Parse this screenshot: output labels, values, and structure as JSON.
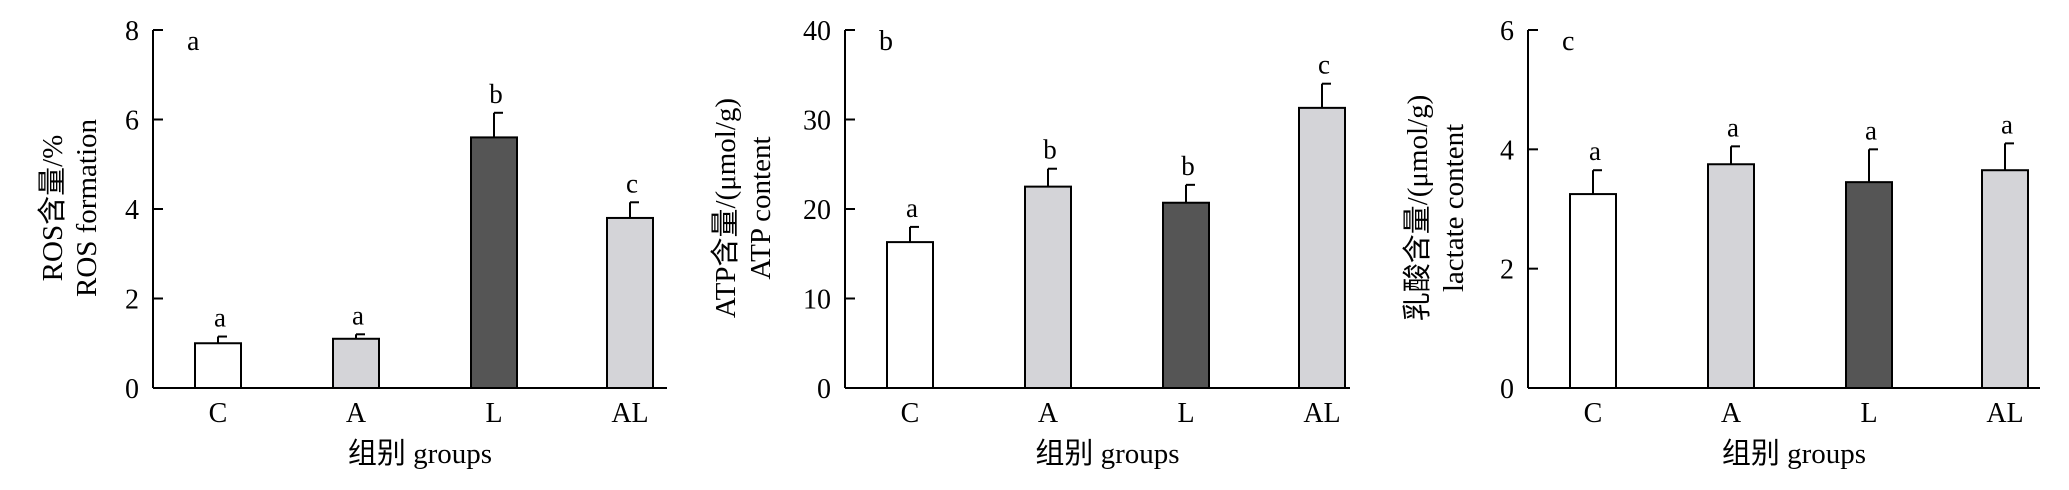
{
  "chart_data": [
    {
      "type": "bar",
      "panel": "a",
      "categories": [
        "C",
        "A",
        "L",
        "AL"
      ],
      "values": [
        1.0,
        1.1,
        5.6,
        3.8
      ],
      "errors": [
        0.15,
        0.1,
        0.55,
        0.35
      ],
      "significance": [
        "a",
        "a",
        "b",
        "c"
      ],
      "bar_colors": [
        "#ffffff",
        "#d4d4d8",
        "#555555",
        "#d4d4d8"
      ],
      "ylabel_lines": [
        "ROS含量/%",
        "ROS formation"
      ],
      "xlabel": "组别 groups",
      "ylim": [
        0,
        8
      ],
      "yticks": [
        0,
        2,
        4,
        6,
        8
      ],
      "legend": "none",
      "grid": false
    },
    {
      "type": "bar",
      "panel": "b",
      "categories": [
        "C",
        "A",
        "L",
        "AL"
      ],
      "values": [
        16.3,
        22.5,
        20.7,
        31.3
      ],
      "errors": [
        1.7,
        2.0,
        2.0,
        2.7
      ],
      "significance": [
        "a",
        "b",
        "b",
        "c"
      ],
      "bar_colors": [
        "#ffffff",
        "#d4d4d8",
        "#555555",
        "#d4d4d8"
      ],
      "ylabel_lines": [
        "ATP含量/(μmol/g)",
        "ATP content"
      ],
      "xlabel": "组别 groups",
      "ylim": [
        0,
        40
      ],
      "yticks": [
        0,
        10,
        20,
        30,
        40
      ],
      "legend": "none",
      "grid": false
    },
    {
      "type": "bar",
      "panel": "c",
      "categories": [
        "C",
        "A",
        "L",
        "AL"
      ],
      "values": [
        3.25,
        3.75,
        3.45,
        3.65
      ],
      "errors": [
        0.4,
        0.3,
        0.55,
        0.45
      ],
      "significance": [
        "a",
        "a",
        "a",
        "a"
      ],
      "bar_colors": [
        "#ffffff",
        "#d4d4d8",
        "#555555",
        "#d4d4d8"
      ],
      "ylabel_lines": [
        "乳酸含量/(μmol/g)",
        "lactate content"
      ],
      "xlabel": "组别 groups",
      "ylim": [
        0,
        6
      ],
      "yticks": [
        0,
        2,
        4,
        6
      ],
      "legend": "none",
      "grid": false
    }
  ]
}
